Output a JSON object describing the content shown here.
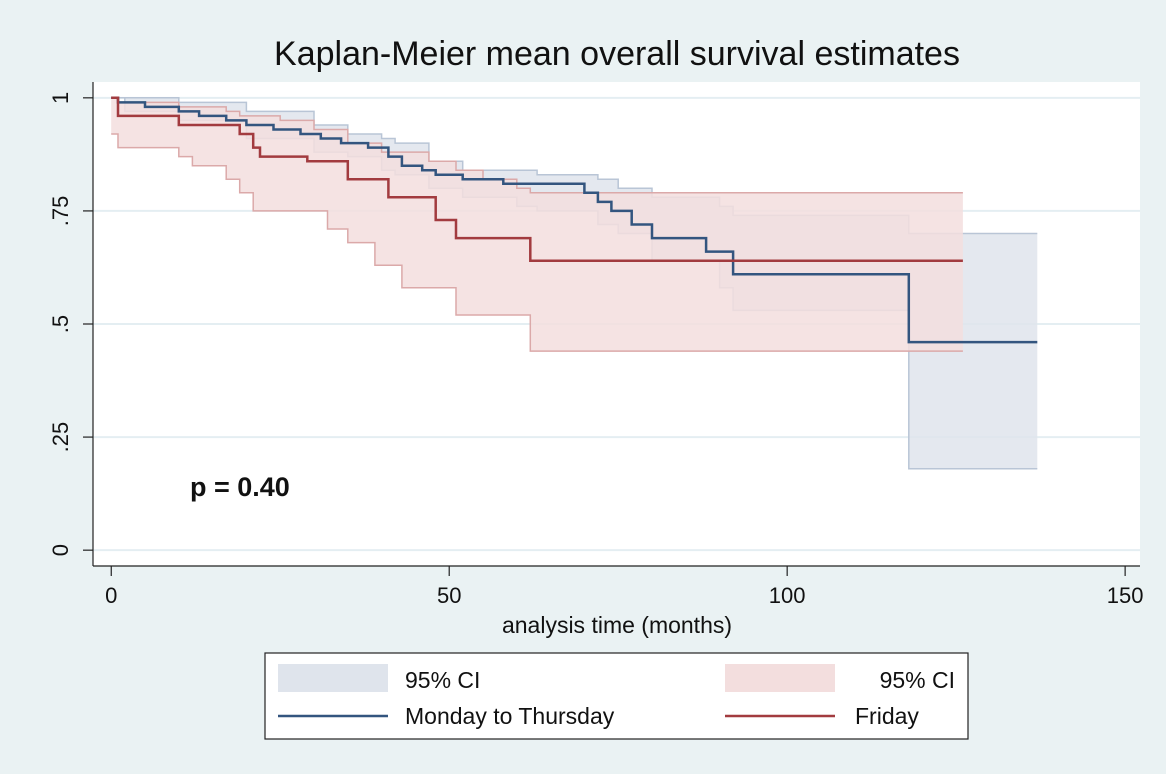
{
  "chart_data": {
    "type": "km-step",
    "title": "Kaplan-Meier mean overall survival estimates",
    "x_label": "analysis time (months)",
    "annotation": "p = 0.40",
    "xlim": [
      -2.7,
      152.2
    ],
    "ylim": [
      -0.035,
      1.035
    ],
    "xticks": [
      0,
      50,
      100,
      150
    ],
    "yticks": [
      0,
      {
        "value": 0.25,
        "label": ".25"
      },
      {
        "value": 0.5,
        "label": ".5"
      },
      {
        "value": 0.75,
        "label": ".75"
      },
      1
    ],
    "grid": true,
    "bands": [
      {
        "name": "95% CI",
        "color": "#dfe4ec",
        "edge": "#b9c5d6",
        "x": [
          0,
          2,
          10,
          20,
          30,
          35,
          40,
          42,
          47,
          52,
          60,
          63,
          72,
          75,
          80,
          90,
          92,
          118,
          137
        ],
        "lower": [
          1,
          0.97,
          0.95,
          0.91,
          0.88,
          0.87,
          0.84,
          0.83,
          0.8,
          0.78,
          0.76,
          0.75,
          0.72,
          0.7,
          0.64,
          0.58,
          0.53,
          0.18,
          0.18
        ],
        "upper": [
          1,
          1,
          0.99,
          0.97,
          0.94,
          0.92,
          0.91,
          0.9,
          0.86,
          0.84,
          0.84,
          0.83,
          0.82,
          0.8,
          0.78,
          0.76,
          0.74,
          0.7,
          0.7
        ]
      },
      {
        "name": "95% CI",
        "color": "#f3dede",
        "edge": "#dba9a9",
        "x": [
          0,
          1,
          10,
          12,
          17,
          19,
          21,
          25,
          30,
          32,
          35,
          39,
          40,
          43,
          47,
          51,
          55,
          60,
          62,
          126
        ],
        "lower": [
          0.92,
          0.89,
          0.87,
          0.85,
          0.82,
          0.79,
          0.75,
          0.75,
          0.75,
          0.71,
          0.68,
          0.63,
          0.63,
          0.58,
          0.58,
          0.52,
          0.52,
          0.52,
          0.44,
          0.44
        ],
        "upper": [
          1,
          0.99,
          0.98,
          0.98,
          0.97,
          0.96,
          0.96,
          0.95,
          0.93,
          0.93,
          0.9,
          0.9,
          0.88,
          0.88,
          0.86,
          0.84,
          0.82,
          0.8,
          0.79,
          0.79
        ]
      }
    ],
    "series": [
      {
        "name": "Monday to Thursday",
        "color": "#33557f",
        "x": [
          0,
          1,
          5,
          10,
          13,
          17,
          20,
          24,
          28,
          31,
          34,
          38,
          41,
          43,
          46,
          48,
          52,
          58,
          70,
          72,
          74,
          77,
          80,
          88,
          92,
          118,
          137
        ],
        "values": [
          1,
          0.99,
          0.98,
          0.97,
          0.96,
          0.95,
          0.94,
          0.93,
          0.92,
          0.91,
          0.9,
          0.89,
          0.87,
          0.85,
          0.84,
          0.83,
          0.82,
          0.81,
          0.79,
          0.77,
          0.75,
          0.72,
          0.69,
          0.66,
          0.61,
          0.46,
          0.46
        ]
      },
      {
        "name": "Friday",
        "color": "#a23b3f",
        "x": [
          0,
          1,
          10,
          19,
          21,
          22,
          29,
          35,
          41,
          48,
          51,
          62,
          126
        ],
        "values": [
          1,
          0.96,
          0.94,
          0.92,
          0.89,
          0.87,
          0.86,
          0.82,
          0.78,
          0.73,
          0.69,
          0.64,
          0.64
        ]
      }
    ]
  }
}
